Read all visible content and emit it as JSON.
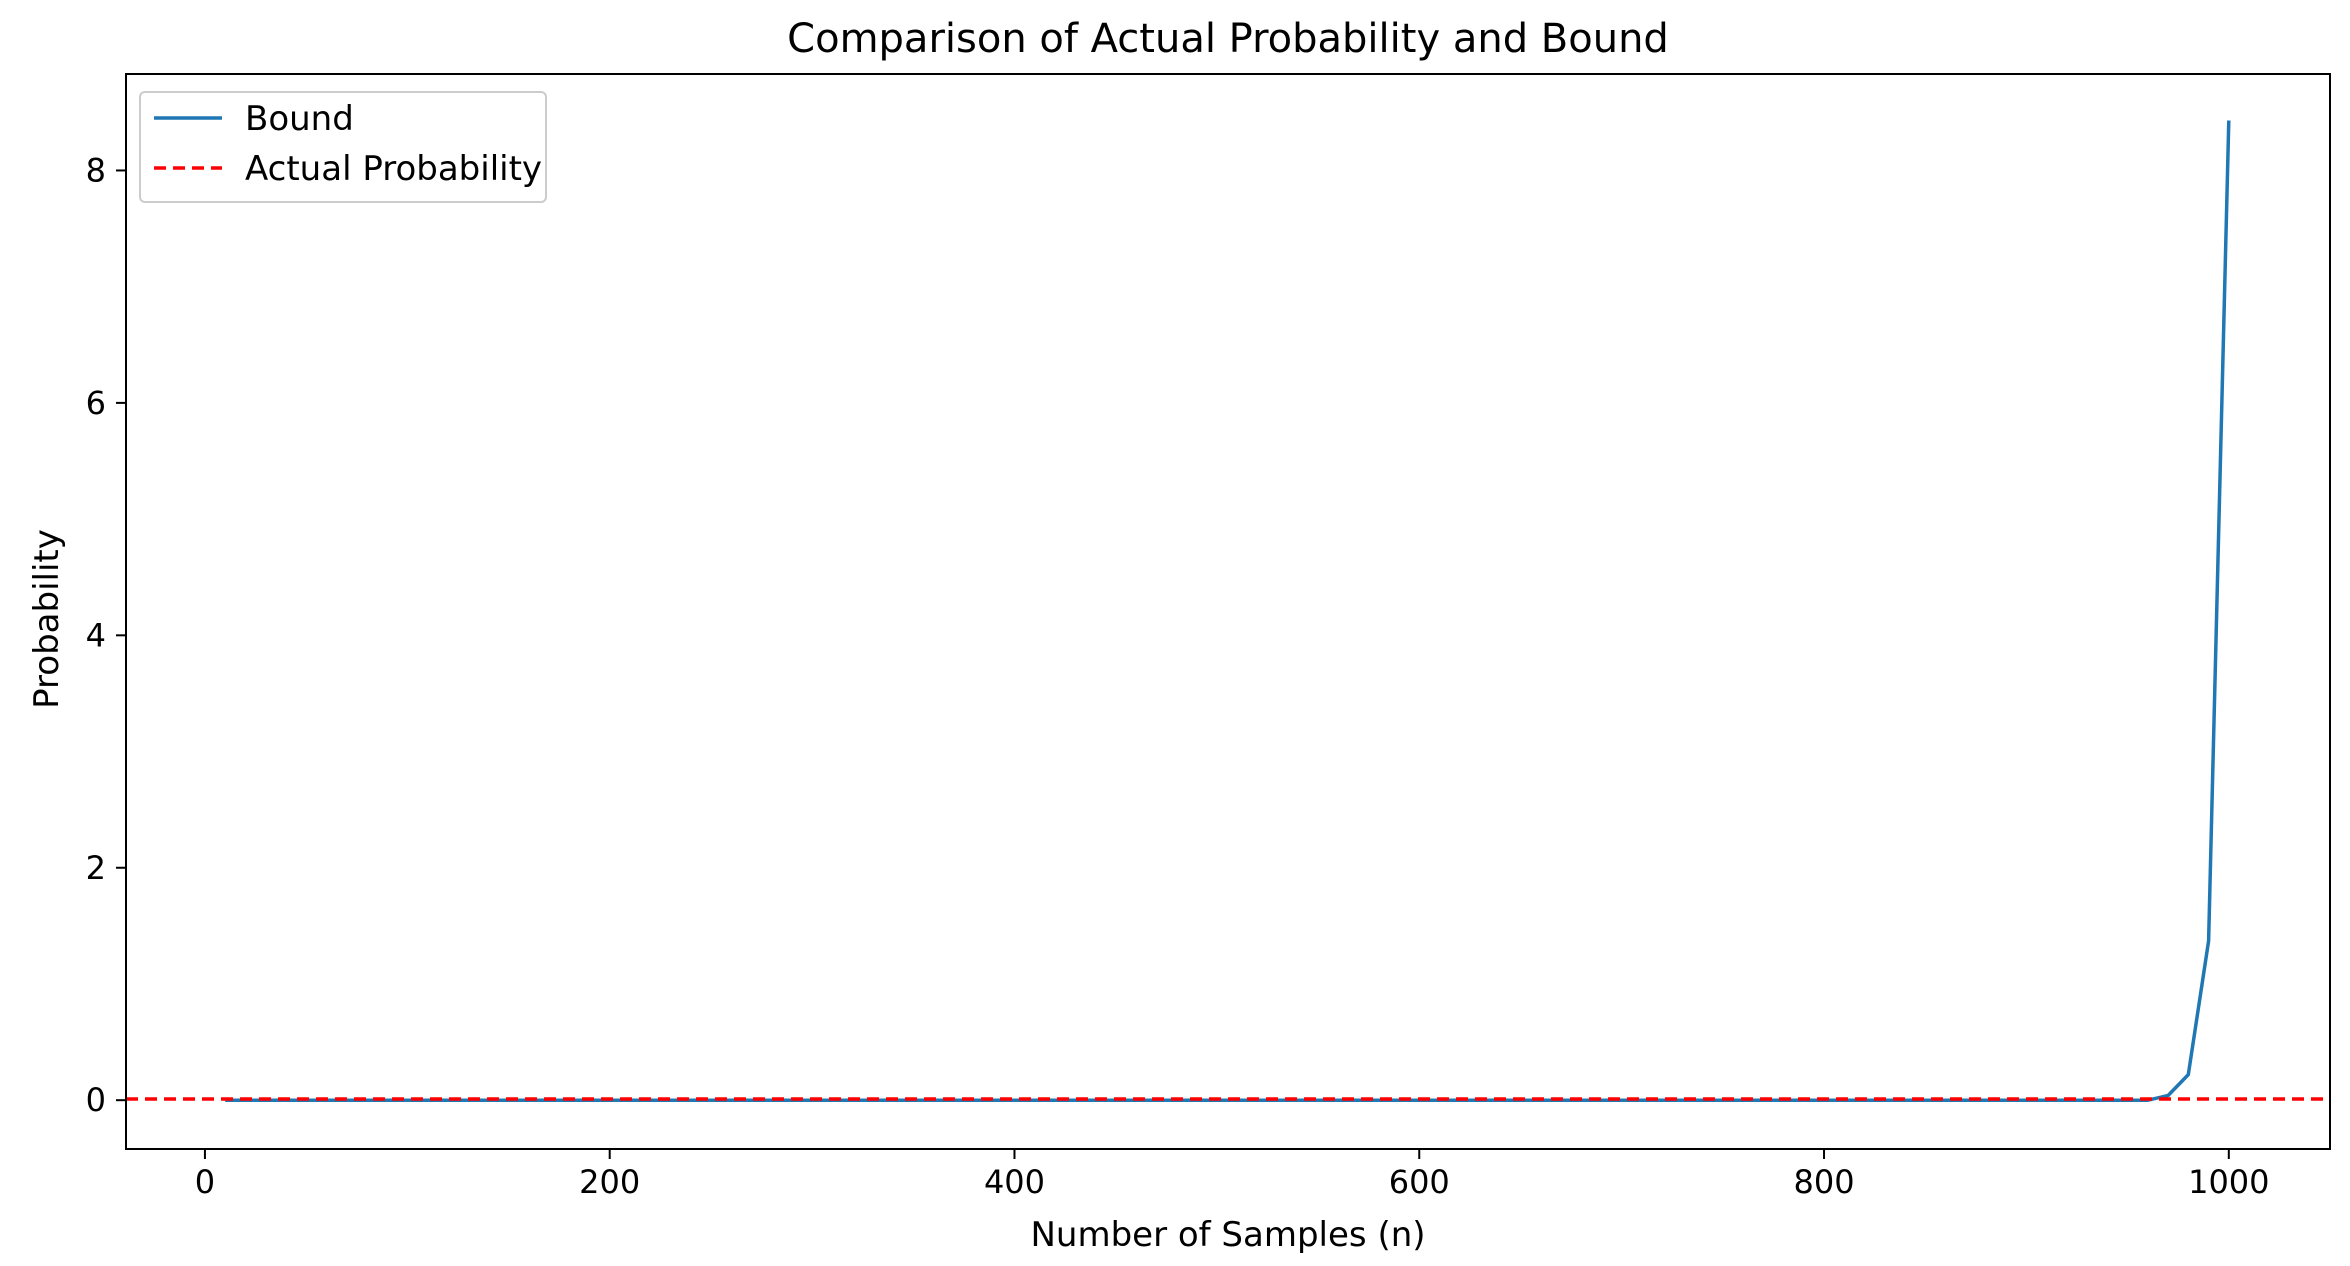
{
  "chart_data": {
    "type": "line",
    "title": "Comparison of Actual Probability and Bound",
    "xlabel": "Number of Samples (n)",
    "ylabel": "Probability",
    "xlim": [
      -39,
      1050
    ],
    "ylim": [
      -0.42,
      8.83
    ],
    "xticks": [
      0,
      200,
      400,
      600,
      800,
      1000
    ],
    "yticks": [
      0,
      2,
      4,
      6,
      8
    ],
    "grid": false,
    "legend_position": "top-left",
    "series": [
      {
        "name": "Bound",
        "style": "solid",
        "color": "#1f77b4",
        "points": [
          [
            10,
            0.0
          ],
          [
            100,
            0.0
          ],
          [
            200,
            0.0
          ],
          [
            300,
            0.0
          ],
          [
            400,
            0.0
          ],
          [
            500,
            0.0
          ],
          [
            600,
            0.0
          ],
          [
            700,
            0.0
          ],
          [
            800,
            0.0
          ],
          [
            900,
            0.0
          ],
          [
            950,
            0.0
          ],
          [
            960,
            0.0
          ],
          [
            970,
            0.04
          ],
          [
            980,
            0.22
          ],
          [
            990,
            1.37
          ],
          [
            1000,
            8.43
          ]
        ]
      },
      {
        "name": "Actual Probability",
        "style": "dashed",
        "color": "#ff0000",
        "hline": 0.01
      }
    ]
  }
}
